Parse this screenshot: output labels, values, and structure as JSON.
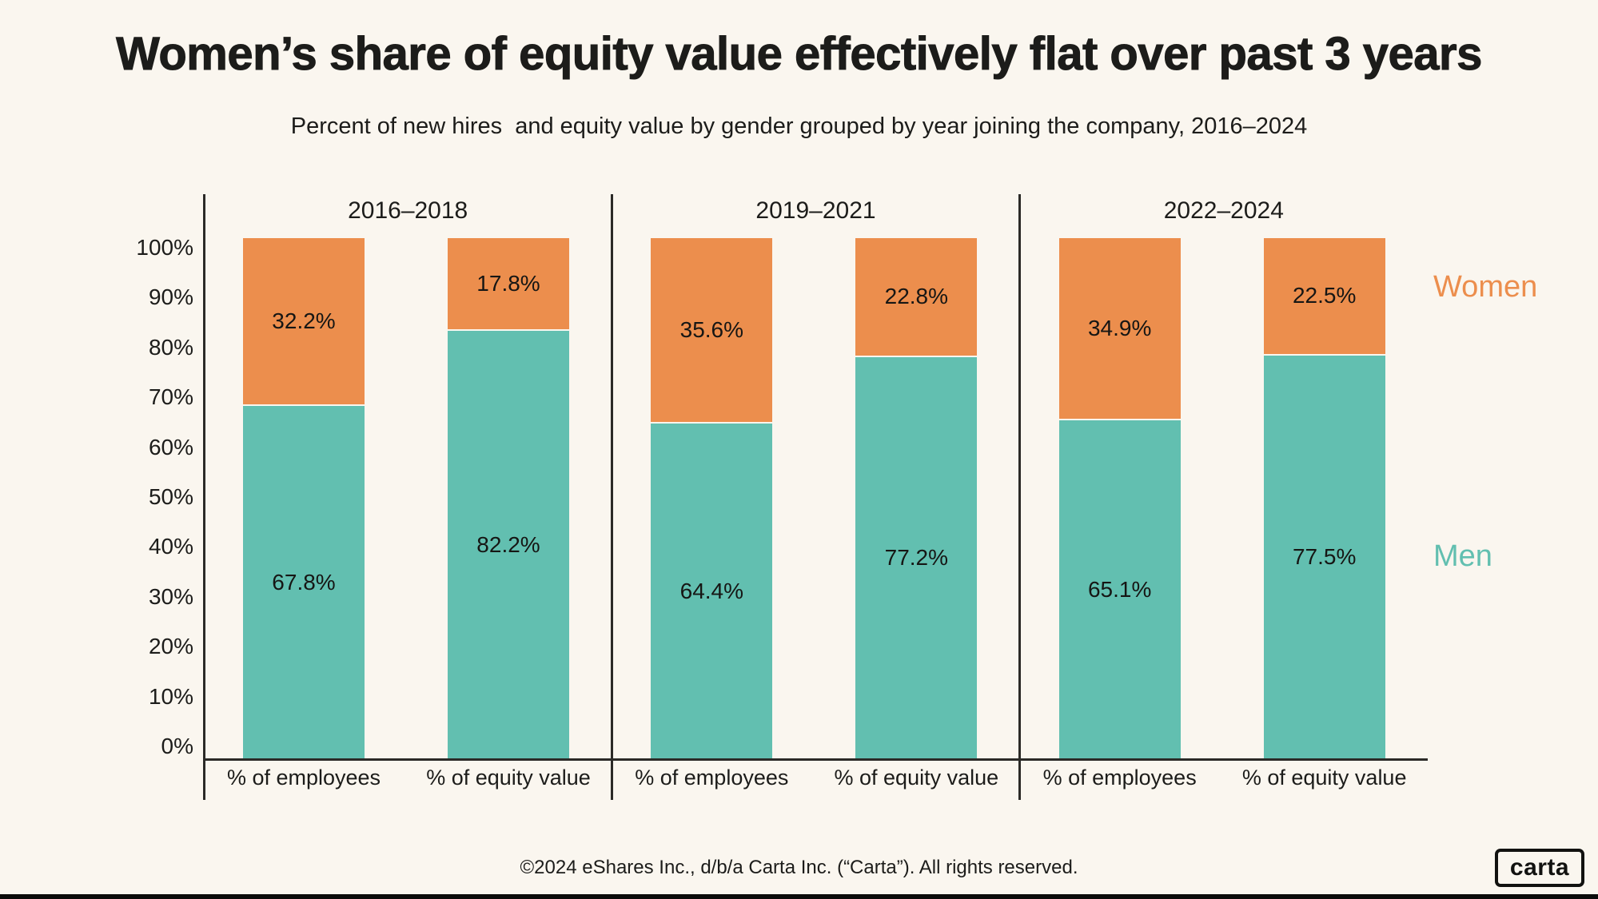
{
  "page": {
    "title": "Women’s share of equity value effectively flat over past 3 years",
    "subtitle": "Percent of new hires  and equity value by gender grouped by year joining the company, 2016–2024",
    "footer": "©2024 eShares Inc., d/b/a Carta Inc. (“Carta”). All rights reserved.",
    "logo_text": "carta"
  },
  "colors": {
    "background": "#FAF6EF",
    "women": "#EC8E4D",
    "men": "#62BFB0",
    "text": "#1C1C1A",
    "axis": "#2B2A27",
    "bottom_bar": "#0B0B0A"
  },
  "legend": {
    "women_label": "Women",
    "men_label": "Men"
  },
  "chart_data": {
    "type": "bar",
    "stacked": true,
    "percent_stacked": true,
    "unit": "%",
    "ylim": [
      0,
      100
    ],
    "grid": false,
    "legend_position": "right",
    "yticks": [
      "100%",
      "90%",
      "80%",
      "70%",
      "60%",
      "50%",
      "40%",
      "30%",
      "20%",
      "10%",
      "0%"
    ],
    "series_names": [
      "Men",
      "Women"
    ],
    "groups": [
      {
        "label": "2016–2018",
        "bars": [
          {
            "category": "% of employees",
            "men": 67.8,
            "women": 32.2
          },
          {
            "category": "% of equity value",
            "men": 82.2,
            "women": 17.8
          }
        ]
      },
      {
        "label": "2019–2021",
        "bars": [
          {
            "category": "% of employees",
            "men": 64.4,
            "women": 35.6
          },
          {
            "category": "% of equity value",
            "men": 77.2,
            "women": 22.8
          }
        ]
      },
      {
        "label": "2022–2024",
        "bars": [
          {
            "category": "% of employees",
            "men": 65.1,
            "women": 34.9
          },
          {
            "category": "% of equity value",
            "men": 77.5,
            "women": 22.5
          }
        ]
      }
    ]
  }
}
